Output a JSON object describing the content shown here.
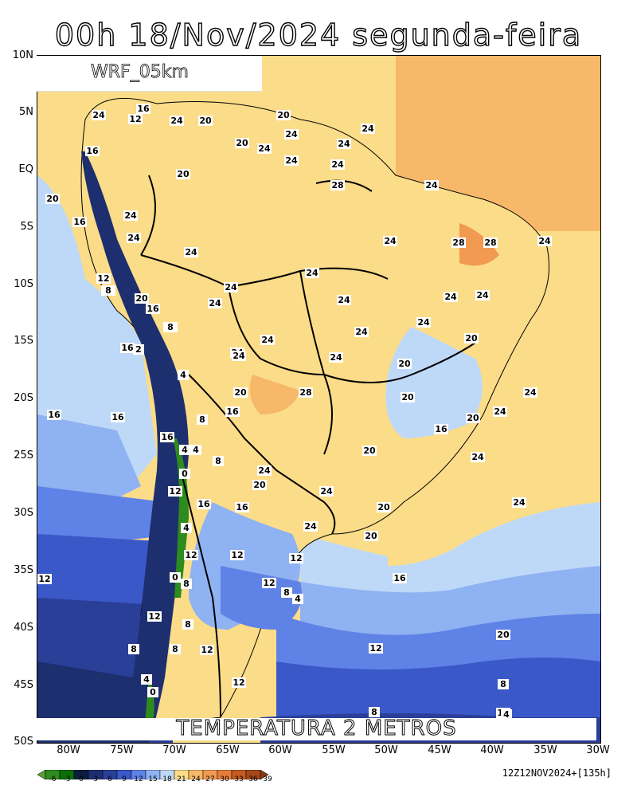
{
  "title": "00h 18/Nov/2024 segunda-feira",
  "model_label": "WRF_05km",
  "variable_label": "TEMPERATURA 2 METROS",
  "run_info": "12Z12NOV2024+[135h]",
  "lat_labels": [
    "10N",
    "5N",
    "EQ",
    "5S",
    "10S",
    "15S",
    "20S",
    "25S",
    "30S",
    "35S",
    "40S",
    "45S",
    "50S"
  ],
  "lon_labels": [
    "80W",
    "75W",
    "70W",
    "65W",
    "60W",
    "55W",
    "50W",
    "45W",
    "40W",
    "35W",
    "30W"
  ],
  "colorbar": {
    "labels": [
      "-6",
      "-3",
      "0",
      "3",
      "6",
      "9",
      "12",
      "15",
      "18",
      "21",
      "24",
      "27",
      "30",
      "33",
      "36",
      "39"
    ],
    "colors": [
      "#5aa02c",
      "#2e8b1e",
      "#0a6e0a",
      "#0c1d3e",
      "#1d2f6e",
      "#2a3f98",
      "#3a58c8",
      "#5f82e6",
      "#8fb2f2",
      "#bed9f8",
      "#fbdc88",
      "#f7b86a",
      "#f29a52",
      "#e67c3a",
      "#c45a20",
      "#8a3a10"
    ]
  },
  "contour_labels": [
    "24",
    "16",
    "12",
    "24",
    "20",
    "20",
    "24",
    "24",
    "20",
    "24",
    "16",
    "24",
    "24",
    "24",
    "20",
    "28",
    "24",
    "24",
    "20",
    "16",
    "24",
    "24",
    "24",
    "28",
    "28",
    "24",
    "12",
    "8",
    "24",
    "24",
    "24",
    "24",
    "20",
    "16",
    "24",
    "24",
    "24",
    "8",
    "24",
    "20",
    "24",
    "24",
    "16",
    "2",
    "4",
    "24",
    "24",
    "20",
    "24",
    "28",
    "20",
    "20",
    "16",
    "16",
    "16",
    "16",
    "8",
    "20",
    "24",
    "16",
    "4",
    "20",
    "24",
    "4",
    "8",
    "24",
    "24",
    "0",
    "20",
    "20",
    "24",
    "12",
    "16",
    "16",
    "24",
    "4",
    "20",
    "12",
    "12",
    "12",
    "12",
    "0",
    "8",
    "4",
    "16",
    "12",
    "8",
    "8",
    "12",
    "8",
    "12",
    "12",
    "8",
    "4",
    "0",
    "20",
    "8",
    "12",
    "12",
    "8",
    "4"
  ]
}
